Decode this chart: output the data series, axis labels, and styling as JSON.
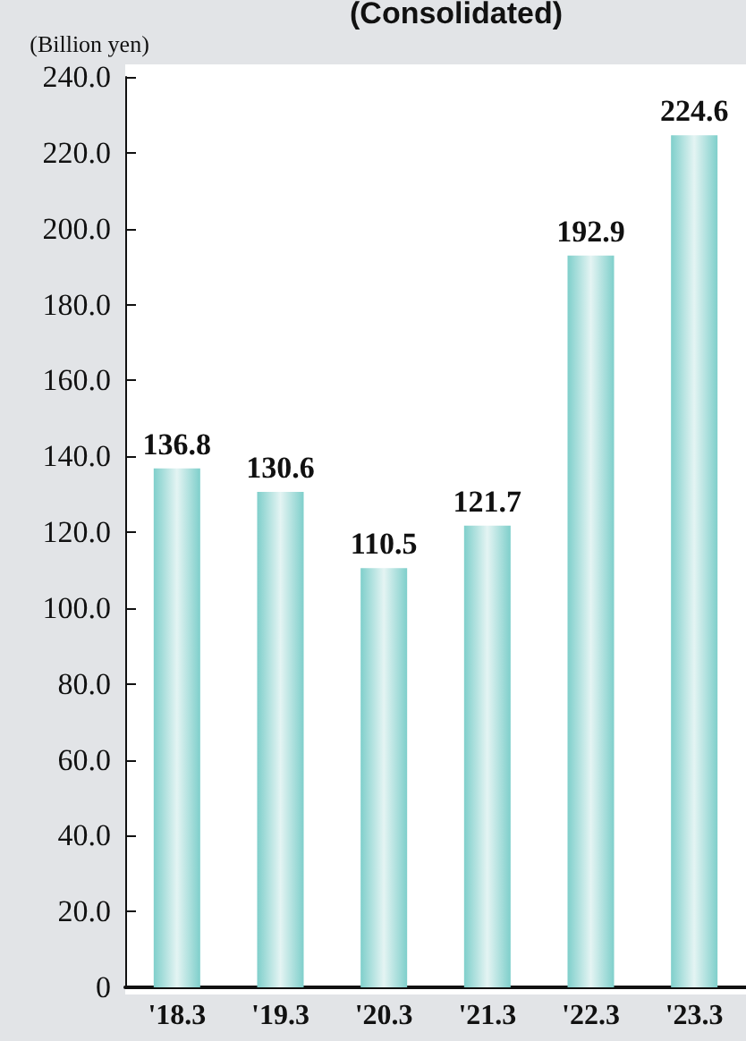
{
  "chart_data": {
    "type": "bar",
    "title": "(Consolidated)",
    "ylabel": "(Billion yen)",
    "categories": [
      "'18.3",
      "'19.3",
      "'20.3",
      "'21.3",
      "'22.3",
      "'23.3"
    ],
    "values": [
      136.8,
      130.6,
      110.5,
      121.7,
      192.9,
      224.6
    ],
    "color": "#7fcfcb",
    "data_labels": true,
    "ylim": [
      0,
      240
    ],
    "yticks": [
      0,
      {
        "value": 20,
        "label": "20.0"
      },
      {
        "value": 40,
        "label": "40.0"
      },
      {
        "value": 60,
        "label": "60.0"
      },
      {
        "value": 80,
        "label": "80.0"
      },
      {
        "value": 100,
        "label": "100.0"
      },
      {
        "value": 120,
        "label": "120.0"
      },
      {
        "value": 140,
        "label": "140.0"
      },
      {
        "value": 160,
        "label": "160.0"
      },
      {
        "value": 180,
        "label": "180.0"
      },
      {
        "value": 200,
        "label": "200.0"
      },
      {
        "value": 220,
        "label": "220.0"
      },
      {
        "value": 240,
        "label": "240.0"
      }
    ]
  }
}
